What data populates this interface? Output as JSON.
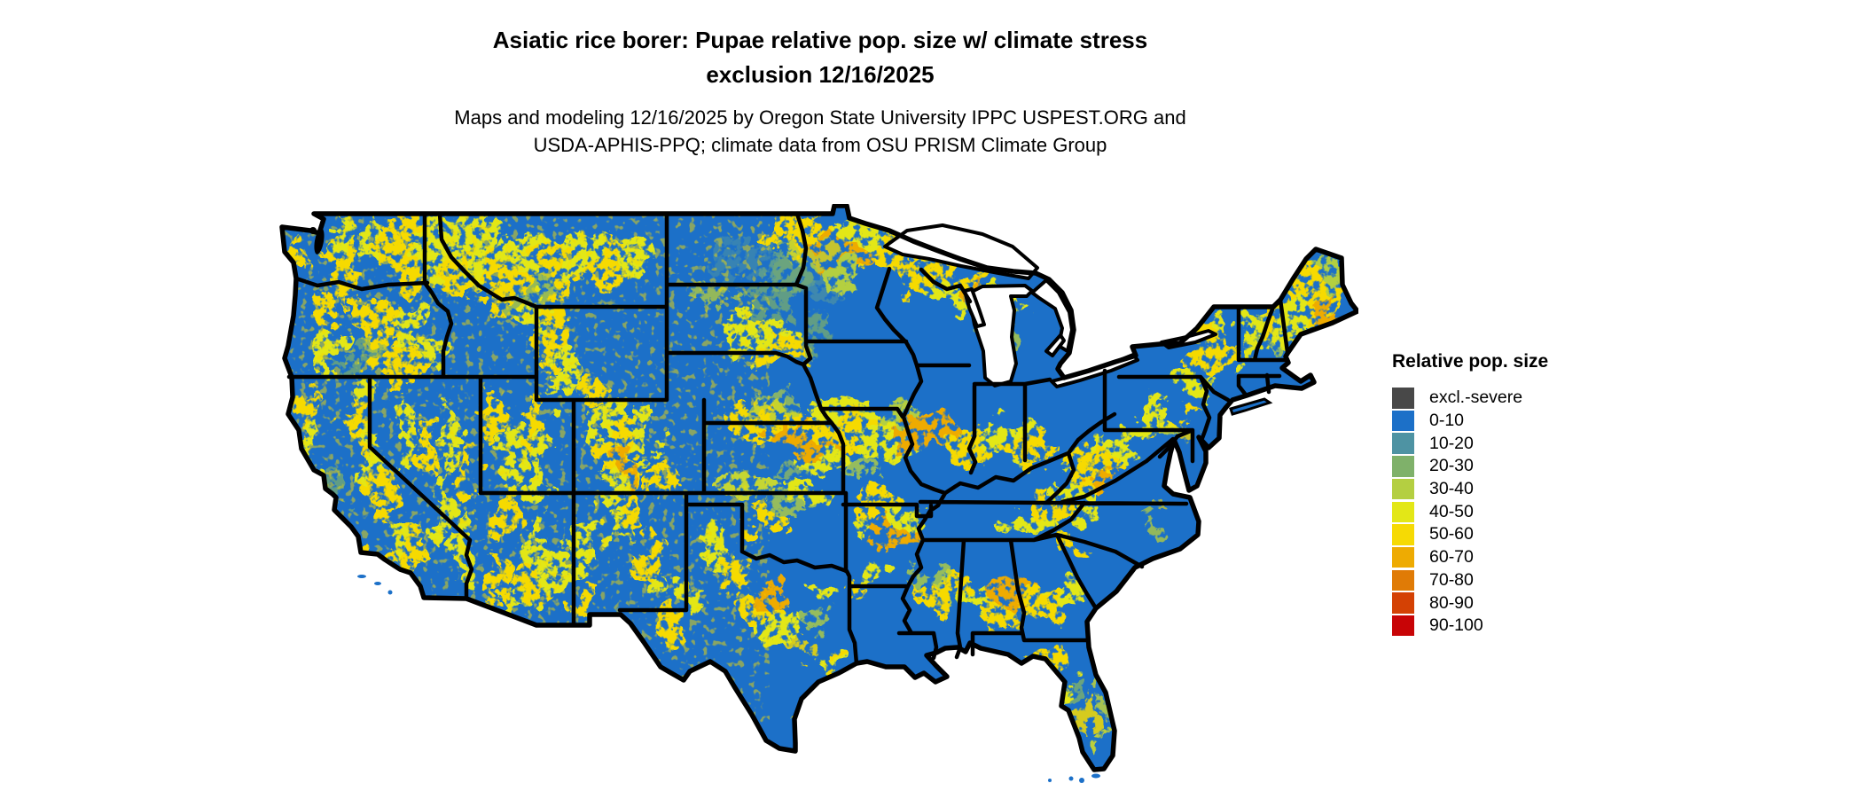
{
  "header": {
    "title_line1": "Asiatic rice borer: Pupae relative pop. size w/ climate stress",
    "title_line2": "exclusion 12/16/2025",
    "subtitle_line1": "Maps and modeling 12/16/2025 by Oregon State University IPPC USPEST.ORG and",
    "subtitle_line2": "USDA-APHIS-PPQ; climate data from OSU PRISM Climate Group"
  },
  "legend": {
    "title": "Relative pop. size",
    "entries": [
      {
        "label": "excl.-severe",
        "color": "#484848"
      },
      {
        "label": "0-10",
        "color": "#1c70c8"
      },
      {
        "label": "10-20",
        "color": "#4e93a3"
      },
      {
        "label": "20-30",
        "color": "#7fb16a"
      },
      {
        "label": "30-40",
        "color": "#b4cf41"
      },
      {
        "label": "40-50",
        "color": "#e3e717"
      },
      {
        "label": "50-60",
        "color": "#f6da04"
      },
      {
        "label": "60-70",
        "color": "#eeab02"
      },
      {
        "label": "70-80",
        "color": "#e07b06"
      },
      {
        "label": "80-90",
        "color": "#d44104"
      },
      {
        "label": "90-100",
        "color": "#c80406"
      }
    ]
  },
  "map": {
    "region": "Conterminous United States",
    "layer": "Relative population size raster",
    "base_fill": "#1c70c8",
    "border_color": "#000000",
    "water_fill": "#ffffff"
  }
}
